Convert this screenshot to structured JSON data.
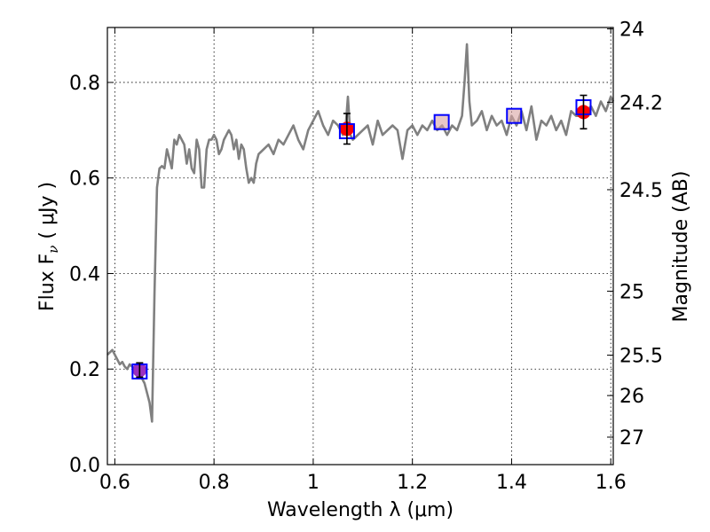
{
  "chart_data": {
    "type": "line",
    "xlabel": "Wavelength  λ (μm)",
    "ylabel": "Flux  F",
    "ylabel_sub": "ν",
    "ylabel_unit": " ( μJy )",
    "y2label": "Magnitude (AB)",
    "xlim": [
      0.585,
      1.605
    ],
    "ylim": [
      0.0,
      0.915
    ],
    "grid": true,
    "x_ticks": [
      0.6,
      0.8,
      1.0,
      1.2,
      1.4,
      1.6
    ],
    "x_tick_labels": [
      "0.6",
      "0.8",
      "1",
      "1.2",
      "1.4",
      "1.6"
    ],
    "y_ticks": [
      0.0,
      0.2,
      0.4,
      0.6,
      0.8
    ],
    "y_tick_labels": [
      "0.0",
      "0.2",
      "0.4",
      "0.6",
      "0.8"
    ],
    "mag_ticks": [
      {
        "mag": 24,
        "label": "24"
      },
      {
        "mag": 24.2,
        "label": "24.2"
      },
      {
        "mag": 24.5,
        "label": "24.5"
      },
      {
        "mag": 25,
        "label": "25"
      },
      {
        "mag": 25.5,
        "label": "25.5"
      },
      {
        "mag": 26,
        "label": "26"
      },
      {
        "mag": 27,
        "label": "27"
      }
    ],
    "colors": {
      "spectrum": "#808080",
      "observed": "#ff0000",
      "model": "#0000ff",
      "model_fill": "#d9a3a3",
      "first_point": "#9b30c0",
      "errorbar": "#000000"
    },
    "series": [
      {
        "x": [
          0.585,
          0.595,
          0.6,
          0.605,
          0.61,
          0.615,
          0.62,
          0.625,
          0.63,
          0.635,
          0.64,
          0.645,
          0.65,
          0.655,
          0.66,
          0.665,
          0.67,
          0.675,
          0.68,
          0.685,
          0.69,
          0.695,
          0.7,
          0.705,
          0.71,
          0.715,
          0.72,
          0.725,
          0.73,
          0.735,
          0.74,
          0.745,
          0.75,
          0.755,
          0.76,
          0.765,
          0.77,
          0.775,
          0.78,
          0.785,
          0.79,
          0.795,
          0.8,
          0.805,
          0.81,
          0.815,
          0.82,
          0.825,
          0.83,
          0.835,
          0.84,
          0.845,
          0.85,
          0.855,
          0.86,
          0.865,
          0.87,
          0.875,
          0.88,
          0.885,
          0.89,
          0.9,
          0.91,
          0.92,
          0.93,
          0.94,
          0.95,
          0.96,
          0.97,
          0.98,
          0.99,
          1.0,
          1.01,
          1.02,
          1.03,
          1.04,
          1.05,
          1.06,
          1.065,
          1.07,
          1.075,
          1.08,
          1.09,
          1.1,
          1.11,
          1.12,
          1.13,
          1.14,
          1.15,
          1.16,
          1.17,
          1.18,
          1.19,
          1.2,
          1.21,
          1.22,
          1.23,
          1.24,
          1.25,
          1.26,
          1.27,
          1.28,
          1.29,
          1.3,
          1.305,
          1.31,
          1.315,
          1.32,
          1.33,
          1.34,
          1.35,
          1.36,
          1.37,
          1.38,
          1.39,
          1.4,
          1.41,
          1.42,
          1.43,
          1.44,
          1.45,
          1.46,
          1.47,
          1.48,
          1.49,
          1.5,
          1.51,
          1.52,
          1.53,
          1.54,
          1.55,
          1.56,
          1.57,
          1.58,
          1.59,
          1.6,
          1.605
        ],
        "y": [
          0.23,
          0.24,
          0.23,
          0.22,
          0.21,
          0.215,
          0.205,
          0.2,
          0.21,
          0.205,
          0.2,
          0.19,
          0.2,
          0.18,
          0.17,
          0.15,
          0.13,
          0.09,
          0.36,
          0.58,
          0.62,
          0.625,
          0.62,
          0.66,
          0.64,
          0.62,
          0.68,
          0.67,
          0.69,
          0.68,
          0.67,
          0.63,
          0.66,
          0.62,
          0.61,
          0.68,
          0.66,
          0.58,
          0.58,
          0.66,
          0.68,
          0.68,
          0.69,
          0.68,
          0.65,
          0.66,
          0.68,
          0.69,
          0.7,
          0.69,
          0.66,
          0.68,
          0.64,
          0.67,
          0.66,
          0.62,
          0.59,
          0.6,
          0.59,
          0.63,
          0.65,
          0.66,
          0.67,
          0.65,
          0.68,
          0.67,
          0.69,
          0.71,
          0.68,
          0.66,
          0.7,
          0.72,
          0.74,
          0.71,
          0.69,
          0.72,
          0.71,
          0.69,
          0.7,
          0.77,
          0.69,
          0.68,
          0.69,
          0.7,
          0.71,
          0.67,
          0.72,
          0.69,
          0.7,
          0.71,
          0.7,
          0.64,
          0.7,
          0.71,
          0.69,
          0.71,
          0.7,
          0.72,
          0.7,
          0.71,
          0.69,
          0.71,
          0.7,
          0.73,
          0.8,
          0.88,
          0.76,
          0.71,
          0.72,
          0.74,
          0.7,
          0.73,
          0.71,
          0.72,
          0.69,
          0.73,
          0.71,
          0.74,
          0.7,
          0.75,
          0.68,
          0.72,
          0.71,
          0.73,
          0.7,
          0.72,
          0.69,
          0.74,
          0.73,
          0.73,
          0.74,
          0.75,
          0.73,
          0.76,
          0.74,
          0.77,
          0.76
        ]
      }
    ],
    "observed": [
      {
        "x": 0.65,
        "y": 0.198,
        "yerr": 0.015
      },
      {
        "x": 1.068,
        "y": 0.703,
        "yerr": 0.032
      },
      {
        "x": 1.545,
        "y": 0.738,
        "yerr": 0.035
      }
    ],
    "model": [
      {
        "x": 0.65,
        "y": 0.195
      },
      {
        "x": 1.068,
        "y": 0.698
      },
      {
        "x": 1.259,
        "y": 0.717
      },
      {
        "x": 1.405,
        "y": 0.73
      },
      {
        "x": 1.545,
        "y": 0.748
      }
    ]
  }
}
